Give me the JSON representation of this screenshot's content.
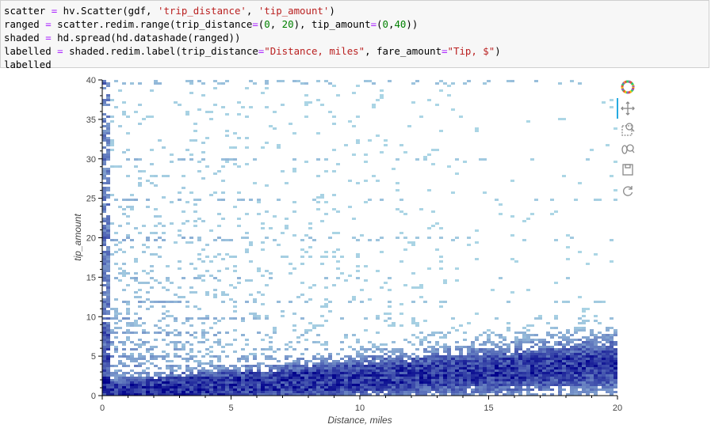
{
  "code": {
    "line1": {
      "a": "scatter ",
      "op": "=",
      "b": " hv.Scatter(gdf, ",
      "s1": "'trip_distance'",
      "c": ", ",
      "s2": "'tip_amount'",
      "d": ")"
    },
    "line2": {
      "a": "ranged ",
      "op": "=",
      "b": " scatter.redim.range(trip_distance",
      "op2": "=",
      "c": "(",
      "n1": "0",
      "d": ", ",
      "n2": "20",
      "e": "), tip_amount",
      "op3": "=",
      "f": "(",
      "n3": "0",
      "g": ",",
      "n4": "40",
      "h": "))"
    },
    "line3": {
      "a": "shaded ",
      "op": "=",
      "b": " hd.spread(hd.datashade(ranged))"
    },
    "line4": {
      "a": "labelled ",
      "op": "=",
      "b": " shaded.redim.label(trip_distance",
      "op2": "=",
      "s1": "\"Distance, miles\"",
      "c": ", fare_amount",
      "op3": "=",
      "s2": "\"Tip, $\"",
      "d": ")"
    },
    "line5": {
      "a": "labelled"
    }
  },
  "chart_data": {
    "type": "scatter",
    "rendering": "datashaded density",
    "xlabel": "Distance, miles",
    "ylabel": "tip_amount",
    "xlim": [
      0,
      20
    ],
    "ylim": [
      0,
      40
    ],
    "x_ticks": [
      0,
      5,
      10,
      15,
      20
    ],
    "y_ticks": [
      0,
      5,
      10,
      15,
      20,
      25,
      30,
      35,
      40
    ],
    "grid": false,
    "colormap": {
      "low": "#add8e6",
      "high": "#00008b"
    }
  },
  "toolbar": {
    "tools": [
      {
        "icon": "bokeh-logo-icon"
      },
      {
        "icon": "pan-icon"
      },
      {
        "icon": "box-zoom-icon"
      },
      {
        "icon": "wheel-zoom-icon"
      },
      {
        "icon": "save-icon"
      },
      {
        "icon": "reset-icon"
      }
    ]
  }
}
